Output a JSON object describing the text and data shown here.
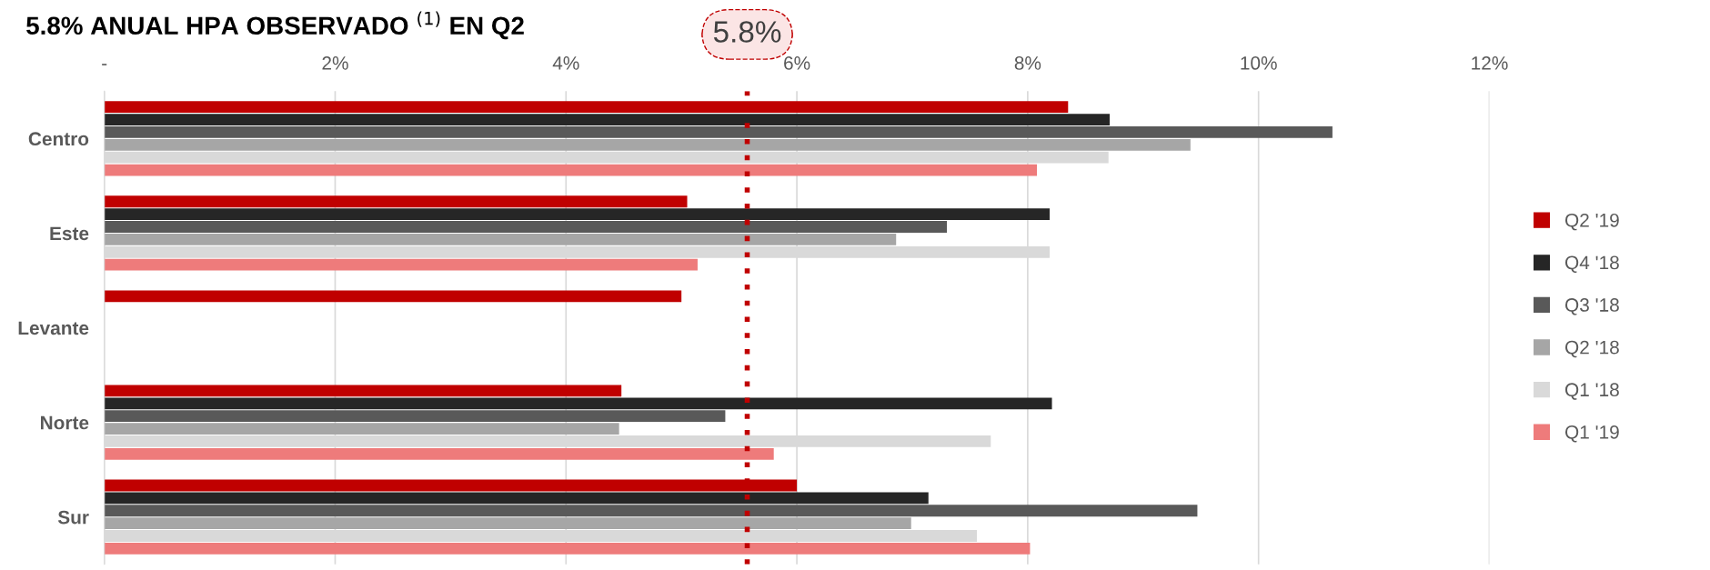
{
  "chart_data": {
    "type": "bar",
    "orientation": "horizontal",
    "title": "5.8% ANUAL HPA OBSERVADO $^{(1)}$ EN Q2",
    "categories": [
      "Centro",
      "Este",
      "Levante",
      "Norte",
      "Sur"
    ],
    "series": [
      {
        "name": "Q2 '19",
        "color": "#c00000",
        "values": [
          8.35,
          5.05,
          5.0,
          4.48,
          6.0
        ]
      },
      {
        "name": "Q4 '18",
        "color": "#262626",
        "values": [
          8.71,
          8.19,
          null,
          8.21,
          7.14
        ]
      },
      {
        "name": "Q3 '18",
        "color": "#595959",
        "values": [
          10.64,
          7.3,
          null,
          5.38,
          9.47
        ]
      },
      {
        "name": "Q2 '18",
        "color": "#a6a6a6",
        "values": [
          9.41,
          6.86,
          null,
          4.46,
          6.99
        ]
      },
      {
        "name": "Q1 '18",
        "color": "#d9d9d9",
        "values": [
          8.7,
          8.19,
          null,
          7.68,
          7.56
        ]
      },
      {
        "name": "Q1 '19",
        "color": "#ee7b7b",
        "values": [
          8.08,
          5.14,
          null,
          5.8,
          8.02
        ]
      }
    ],
    "xlim": [
      0,
      12
    ],
    "xticks": [
      {
        "value": 0,
        "label": "-"
      },
      {
        "value": 2,
        "label": "2%"
      },
      {
        "value": 4,
        "label": "4%"
      },
      {
        "value": 6,
        "label": "6%"
      },
      {
        "value": 8,
        "label": "8%"
      },
      {
        "value": 10,
        "label": "10%"
      },
      {
        "value": 12,
        "label": "12%"
      }
    ],
    "ref_lines": [
      {
        "axis": "x",
        "value": 5.57,
        "color": "#c00000",
        "line_style": "dotted"
      }
    ],
    "annotations": [
      "5.8%"
    ],
    "grid": "x",
    "legend": "right"
  }
}
